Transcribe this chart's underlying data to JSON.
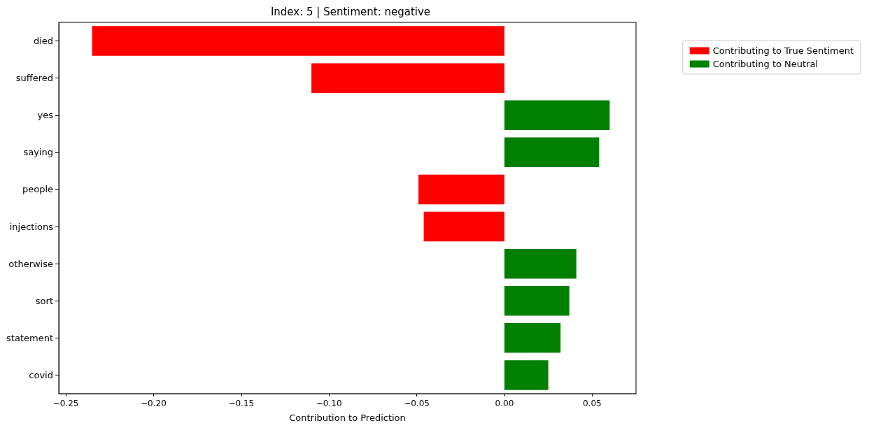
{
  "chart_data": {
    "type": "bar",
    "orientation": "horizontal",
    "title": "Index: 5 | Sentiment: negative",
    "xlabel": "Contribution to Prediction",
    "categories": [
      "died",
      "suffered",
      "yes",
      "saying",
      "people",
      "injections",
      "otherwise",
      "sort",
      "statement",
      "covid"
    ],
    "series": [
      {
        "name": "Contributing to True Sentiment",
        "color": "#ff0000",
        "values": [
          -0.235,
          -0.11,
          null,
          null,
          -0.049,
          -0.046,
          null,
          null,
          null,
          null
        ]
      },
      {
        "name": "Contributing to Neutral",
        "color": "#008000",
        "values": [
          null,
          null,
          0.06,
          0.054,
          null,
          null,
          0.041,
          0.037,
          0.032,
          0.025
        ]
      }
    ],
    "xlim": [
      -0.254,
      0.075
    ],
    "xticks": [
      {
        "value": -0.25,
        "label": "−0.25"
      },
      {
        "value": -0.2,
        "label": "−0.20"
      },
      {
        "value": -0.15,
        "label": "−0.15"
      },
      {
        "value": -0.1,
        "label": "−0.10"
      },
      {
        "value": -0.05,
        "label": "−0.05"
      },
      {
        "value": 0,
        "label": "0.00"
      },
      {
        "value": 0.05,
        "label": "0.05"
      }
    ],
    "grid": false,
    "legend": "top right"
  }
}
